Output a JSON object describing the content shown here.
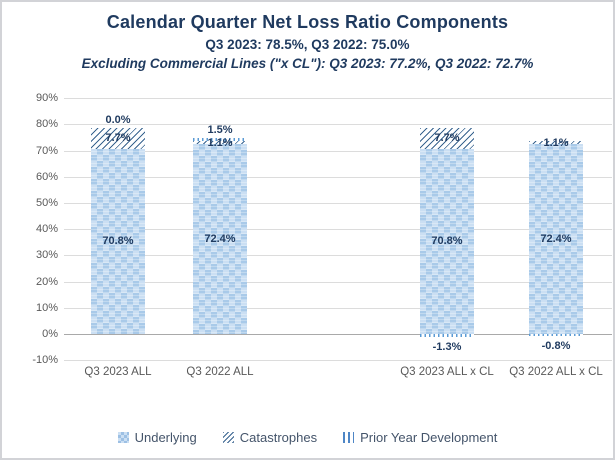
{
  "header": {
    "title": "Calendar Quarter Net Loss Ratio Components",
    "subtitle1": "Q3 2023: 78.5%, Q3 2022: 75.0%",
    "subtitle2": "Excluding Commercial Lines (\"x CL\"): Q3 2023: 77.2%, Q3 2022: 72.7%"
  },
  "colors": {
    "title_text": "#1f3a5f",
    "axis_text": "#595959",
    "legend_text": "#44546a",
    "gridline": "#dcdcdc",
    "zero_line": "#a9a9a9",
    "underlying_fill_dark": "#a9cae9",
    "underlying_fill_light": "#cbdff3",
    "catastrophe_stripe": "#39648f",
    "pyd_stripe": "#5b9bd5"
  },
  "chart_data": {
    "type": "bar",
    "stacked": true,
    "title": "Calendar Quarter Net Loss Ratio Components",
    "subtitle": "Q3 2023: 78.5%, Q3 2022: 75.0%",
    "subtitle2": "Excluding Commercial Lines (\"x CL\"): Q3 2023: 77.2%, Q3 2022: 72.7%",
    "ylim": [
      -10,
      90
    ],
    "grid": true,
    "legend_position": "bottom",
    "yticks": [
      {
        "value": 90,
        "label": "90%"
      },
      {
        "value": 80,
        "label": "80%"
      },
      {
        "value": 70,
        "label": "70%"
      },
      {
        "value": 60,
        "label": "60%"
      },
      {
        "value": 50,
        "label": "50%"
      },
      {
        "value": 40,
        "label": "40%"
      },
      {
        "value": 30,
        "label": "30%"
      },
      {
        "value": 20,
        "label": "20%"
      },
      {
        "value": 10,
        "label": "10%"
      },
      {
        "value": 0,
        "label": "0%"
      },
      {
        "value": -10,
        "label": "-10%"
      }
    ],
    "categories": [
      "Q3 2023 ALL",
      "Q3 2022 ALL",
      "Q3 2023 ALL x CL",
      "Q3 2022 ALL x CL"
    ],
    "series": [
      {
        "name": "Underlying",
        "pattern": "checker",
        "values": [
          70.8,
          72.4,
          70.8,
          72.4
        ],
        "labels": [
          "70.8%",
          "72.4%",
          "70.8%",
          "72.4%"
        ]
      },
      {
        "name": "Catastrophes",
        "pattern": "diag",
        "values": [
          7.7,
          1.1,
          7.7,
          1.1
        ],
        "labels": [
          "7.7%",
          "1.1%",
          "7.7%",
          "1.1%"
        ]
      },
      {
        "name": "Prior Year Development",
        "pattern": "vert",
        "values": [
          0.0,
          1.5,
          -1.3,
          -0.8
        ],
        "labels": [
          "0.0%",
          "1.5%",
          "-1.3%",
          "-0.8%"
        ]
      }
    ],
    "stack_totals": [
      78.5,
      75.0,
      77.2,
      72.7
    ]
  }
}
